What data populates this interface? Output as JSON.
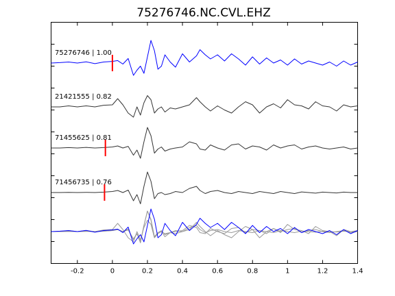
{
  "chart_data": {
    "type": "line",
    "title": "75276746.NC.CVL.EHZ",
    "xlabel": "",
    "ylabel": "",
    "xlim": [
      -0.35,
      1.4
    ],
    "xticks": [
      -0.2,
      0,
      0.2,
      0.4,
      0.6,
      0.8,
      1,
      1.2,
      1.4
    ],
    "xtick_labels": [
      "-0.2",
      "0",
      "0.2",
      "0.4",
      "0.6",
      "0.8",
      "1",
      "1.2",
      "1.4"
    ],
    "grid": false,
    "colors": {
      "reference": "#0000ff",
      "other": "#333333",
      "overlay_other": "#999999",
      "pick": "#ff0000"
    },
    "traces": [
      {
        "label": "75276746 | 1.00",
        "event_id": "75276746",
        "correlation": 1.0,
        "color": "#0000ff",
        "pick_time": 0.0,
        "x": [
          -0.35,
          -0.3,
          -0.25,
          -0.2,
          -0.15,
          -0.1,
          -0.05,
          0,
          0.03,
          0.06,
          0.09,
          0.12,
          0.14,
          0.16,
          0.18,
          0.2,
          0.22,
          0.24,
          0.26,
          0.28,
          0.3,
          0.33,
          0.36,
          0.4,
          0.44,
          0.48,
          0.5,
          0.53,
          0.56,
          0.6,
          0.64,
          0.68,
          0.72,
          0.76,
          0.8,
          0.84,
          0.88,
          0.92,
          0.96,
          1.0,
          1.04,
          1.08,
          1.12,
          1.16,
          1.2,
          1.24,
          1.28,
          1.32,
          1.36,
          1.4
        ],
        "y": [
          0,
          0.02,
          0.05,
          0.0,
          0.06,
          -0.03,
          0.05,
          0.08,
          0.12,
          -0.05,
          0.22,
          -0.6,
          -0.35,
          -0.15,
          -0.5,
          0.3,
          1.1,
          0.6,
          -0.3,
          -0.15,
          0.4,
          0.05,
          -0.2,
          0.45,
          0.05,
          0.35,
          0.65,
          0.4,
          0.2,
          0.4,
          0.1,
          0.45,
          0.2,
          -0.1,
          0.3,
          -0.05,
          0.25,
          0.0,
          0.15,
          -0.1,
          0.2,
          -0.05,
          0.1,
          0.0,
          -0.1,
          0.05,
          -0.15,
          0.1,
          -0.1,
          0.05
        ]
      },
      {
        "label": "21421555 | 0.82",
        "event_id": "21421555",
        "correlation": 0.82,
        "color": "#333333",
        "pick_time": null,
        "x": [
          -0.35,
          -0.3,
          -0.25,
          -0.2,
          -0.15,
          -0.1,
          -0.05,
          0,
          0.03,
          0.06,
          0.09,
          0.12,
          0.14,
          0.16,
          0.18,
          0.2,
          0.22,
          0.24,
          0.26,
          0.28,
          0.3,
          0.33,
          0.36,
          0.4,
          0.44,
          0.48,
          0.5,
          0.53,
          0.56,
          0.6,
          0.64,
          0.68,
          0.72,
          0.76,
          0.8,
          0.84,
          0.88,
          0.92,
          0.96,
          1.0,
          1.04,
          1.08,
          1.12,
          1.16,
          1.2,
          1.24,
          1.28,
          1.32,
          1.36,
          1.4
        ],
        "y": [
          0,
          0.0,
          0.05,
          0.0,
          0.05,
          0.0,
          0.08,
          0.1,
          0.4,
          0.1,
          -0.3,
          -0.5,
          0.0,
          -0.4,
          0.2,
          0.55,
          0.35,
          -0.3,
          -0.1,
          0.0,
          -0.25,
          -0.05,
          -0.1,
          0.0,
          0.1,
          0.45,
          0.25,
          0.0,
          -0.2,
          0.05,
          -0.15,
          -0.3,
          0.0,
          0.25,
          0.1,
          -0.3,
          0.0,
          0.15,
          -0.05,
          0.35,
          0.1,
          0.05,
          -0.1,
          0.25,
          0.05,
          0.0,
          -0.2,
          0.1,
          0.0,
          0.05
        ]
      },
      {
        "label": "71455625 | 0.81",
        "event_id": "71455625",
        "correlation": 0.81,
        "color": "#333333",
        "pick_time": -0.04,
        "x": [
          -0.35,
          -0.3,
          -0.25,
          -0.2,
          -0.15,
          -0.1,
          -0.05,
          0,
          0.03,
          0.06,
          0.09,
          0.12,
          0.14,
          0.16,
          0.18,
          0.2,
          0.22,
          0.24,
          0.26,
          0.28,
          0.3,
          0.33,
          0.36,
          0.4,
          0.44,
          0.48,
          0.5,
          0.53,
          0.56,
          0.6,
          0.64,
          0.68,
          0.72,
          0.76,
          0.8,
          0.84,
          0.88,
          0.92,
          0.96,
          1.0,
          1.04,
          1.08,
          1.12,
          1.16,
          1.2,
          1.24,
          1.28,
          1.32,
          1.36,
          1.4
        ],
        "y": [
          0,
          0.0,
          0.02,
          0.0,
          0.03,
          0.0,
          0.02,
          0.05,
          0.1,
          0.0,
          0.08,
          -0.35,
          -0.1,
          -0.5,
          0.3,
          1.0,
          0.6,
          -0.25,
          -0.05,
          0.05,
          -0.15,
          -0.05,
          0.0,
          0.05,
          0.3,
          0.2,
          -0.05,
          -0.1,
          0.15,
          0.0,
          -0.1,
          0.15,
          0.2,
          -0.05,
          0.1,
          0.05,
          -0.1,
          0.15,
          0.0,
          0.1,
          0.15,
          -0.05,
          0.05,
          0.1,
          0.0,
          -0.05,
          0.0,
          0.05,
          -0.05,
          0.0
        ]
      },
      {
        "label": "71456735 | 0.76",
        "event_id": "71456735",
        "correlation": 0.76,
        "color": "#333333",
        "pick_time": -0.045,
        "x": [
          -0.35,
          -0.3,
          -0.25,
          -0.2,
          -0.15,
          -0.1,
          -0.05,
          0,
          0.03,
          0.06,
          0.09,
          0.12,
          0.14,
          0.16,
          0.18,
          0.2,
          0.22,
          0.24,
          0.26,
          0.28,
          0.3,
          0.33,
          0.36,
          0.4,
          0.44,
          0.48,
          0.5,
          0.53,
          0.56,
          0.6,
          0.64,
          0.68,
          0.72,
          0.76,
          0.8,
          0.84,
          0.88,
          0.92,
          0.96,
          1.0,
          1.04,
          1.08,
          1.12,
          1.16,
          1.2,
          1.24,
          1.28,
          1.32,
          1.36,
          1.4
        ],
        "y": [
          0,
          0.0,
          0.01,
          0.0,
          0.01,
          0.0,
          0.02,
          0.05,
          0.1,
          0.0,
          0.12,
          -0.4,
          -0.1,
          -0.55,
          0.3,
          1.0,
          0.55,
          -0.3,
          -0.05,
          0.0,
          -0.1,
          -0.05,
          0.05,
          0.0,
          0.2,
          0.3,
          0.1,
          -0.05,
          0.05,
          0.1,
          0.0,
          -0.05,
          0.05,
          0.0,
          -0.05,
          0.05,
          0.0,
          -0.05,
          0.05,
          0.0,
          -0.05,
          0.03,
          0.0,
          -0.03,
          0.02,
          0.0,
          -0.02,
          0.02,
          0.0,
          0.0
        ]
      }
    ]
  }
}
